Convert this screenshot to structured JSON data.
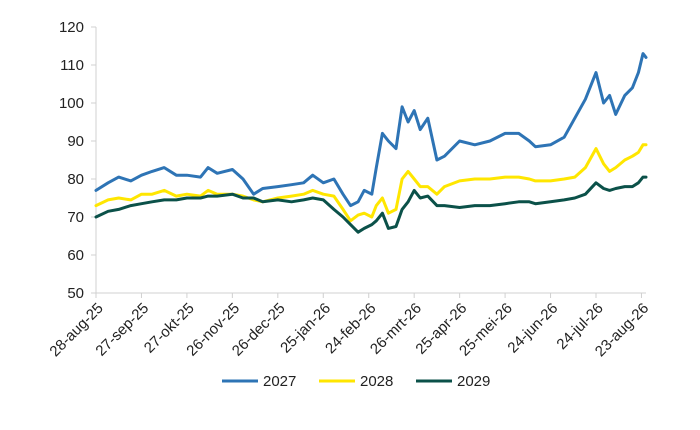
{
  "chart_data": {
    "type": "line",
    "title": "",
    "xlabel": "",
    "ylabel": "",
    "ylim": [
      50,
      120
    ],
    "yticks": [
      50,
      60,
      70,
      80,
      90,
      100,
      110,
      120
    ],
    "xlim": [
      "2025-08-28",
      "2026-08-26"
    ],
    "xtick_labels": [
      {
        "label": "28-aug-25",
        "date": "2025-08-28"
      },
      {
        "label": "27-sep-25",
        "date": "2025-09-27"
      },
      {
        "label": "27-okt-25",
        "date": "2025-10-27"
      },
      {
        "label": "26-nov-25",
        "date": "2025-11-26"
      },
      {
        "label": "26-dec-25",
        "date": "2025-12-26"
      },
      {
        "label": "25-jan-26",
        "date": "2026-01-25"
      },
      {
        "label": "24-feb-26",
        "date": "2026-02-24"
      },
      {
        "label": "26-mrt-26",
        "date": "2026-03-26"
      },
      {
        "label": "25-apr-26",
        "date": "2026-04-25"
      },
      {
        "label": "25-mei-26",
        "date": "2026-05-25"
      },
      {
        "label": "24-jun-26",
        "date": "2026-06-24"
      },
      {
        "label": "24-jul-26",
        "date": "2026-07-24"
      },
      {
        "label": "23-aug-26",
        "date": "2026-08-23"
      }
    ],
    "grid": false,
    "legend_position": "bottom",
    "series": [
      {
        "name": "2027",
        "color": "#2e74b5",
        "points": [
          [
            "2025-08-28",
            77
          ],
          [
            "2025-09-05",
            79
          ],
          [
            "2025-09-12",
            80.5
          ],
          [
            "2025-09-20",
            79.5
          ],
          [
            "2025-09-27",
            81
          ],
          [
            "2025-10-04",
            82
          ],
          [
            "2025-10-12",
            83
          ],
          [
            "2025-10-20",
            81
          ],
          [
            "2025-10-27",
            81
          ],
          [
            "2025-11-05",
            80.5
          ],
          [
            "2025-11-10",
            83
          ],
          [
            "2025-11-16",
            81.5
          ],
          [
            "2025-11-26",
            82.5
          ],
          [
            "2025-12-03",
            80
          ],
          [
            "2025-12-10",
            76
          ],
          [
            "2025-12-16",
            77.5
          ],
          [
            "2025-12-26",
            78
          ],
          [
            "2026-01-04",
            78.5
          ],
          [
            "2026-01-12",
            79
          ],
          [
            "2026-01-18",
            81
          ],
          [
            "2026-01-25",
            79
          ],
          [
            "2026-02-01",
            80
          ],
          [
            "2026-02-07",
            76
          ],
          [
            "2026-02-12",
            73
          ],
          [
            "2026-02-17",
            74
          ],
          [
            "2026-02-21",
            77
          ],
          [
            "2026-02-26",
            76
          ],
          [
            "2026-03-01",
            83
          ],
          [
            "2026-03-05",
            92
          ],
          [
            "2026-03-09",
            90
          ],
          [
            "2026-03-14",
            88
          ],
          [
            "2026-03-18",
            99
          ],
          [
            "2026-03-22",
            95
          ],
          [
            "2026-03-26",
            98
          ],
          [
            "2026-03-30",
            93
          ],
          [
            "2026-04-04",
            96
          ],
          [
            "2026-04-10",
            85
          ],
          [
            "2026-04-15",
            86
          ],
          [
            "2026-04-25",
            90
          ],
          [
            "2026-05-05",
            89
          ],
          [
            "2026-05-15",
            90
          ],
          [
            "2026-05-25",
            92
          ],
          [
            "2026-06-03",
            92
          ],
          [
            "2026-06-10",
            90
          ],
          [
            "2026-06-14",
            88.5
          ],
          [
            "2026-06-24",
            89
          ],
          [
            "2026-07-03",
            91
          ],
          [
            "2026-07-10",
            96
          ],
          [
            "2026-07-17",
            101
          ],
          [
            "2026-07-24",
            108
          ],
          [
            "2026-07-29",
            100
          ],
          [
            "2026-08-02",
            102
          ],
          [
            "2026-08-06",
            97
          ],
          [
            "2026-08-12",
            102
          ],
          [
            "2026-08-17",
            104
          ],
          [
            "2026-08-21",
            108
          ],
          [
            "2026-08-24",
            113
          ],
          [
            "2026-08-26",
            112
          ]
        ]
      },
      {
        "name": "2028",
        "color": "#ffe600",
        "points": [
          [
            "2025-08-28",
            73
          ],
          [
            "2025-09-05",
            74.5
          ],
          [
            "2025-09-12",
            75
          ],
          [
            "2025-09-20",
            74.5
          ],
          [
            "2025-09-27",
            76
          ],
          [
            "2025-10-04",
            76
          ],
          [
            "2025-10-12",
            77
          ],
          [
            "2025-10-20",
            75.5
          ],
          [
            "2025-10-27",
            76
          ],
          [
            "2025-11-05",
            75.5
          ],
          [
            "2025-11-10",
            77
          ],
          [
            "2025-11-16",
            76
          ],
          [
            "2025-11-26",
            76
          ],
          [
            "2025-12-03",
            75.5
          ],
          [
            "2025-12-10",
            74.5
          ],
          [
            "2025-12-16",
            74
          ],
          [
            "2025-12-26",
            75
          ],
          [
            "2026-01-04",
            75.5
          ],
          [
            "2026-01-12",
            76
          ],
          [
            "2026-01-18",
            77
          ],
          [
            "2026-01-25",
            76
          ],
          [
            "2026-02-01",
            75.5
          ],
          [
            "2026-02-07",
            72
          ],
          [
            "2026-02-12",
            69
          ],
          [
            "2026-02-17",
            70.5
          ],
          [
            "2026-02-21",
            71
          ],
          [
            "2026-02-26",
            70
          ],
          [
            "2026-03-01",
            73
          ],
          [
            "2026-03-05",
            75
          ],
          [
            "2026-03-09",
            71
          ],
          [
            "2026-03-14",
            72
          ],
          [
            "2026-03-18",
            80
          ],
          [
            "2026-03-22",
            82
          ],
          [
            "2026-03-26",
            80
          ],
          [
            "2026-03-30",
            78
          ],
          [
            "2026-04-04",
            78
          ],
          [
            "2026-04-10",
            76
          ],
          [
            "2026-04-15",
            78
          ],
          [
            "2026-04-25",
            79.5
          ],
          [
            "2026-05-05",
            80
          ],
          [
            "2026-05-15",
            80
          ],
          [
            "2026-05-25",
            80.5
          ],
          [
            "2026-06-03",
            80.5
          ],
          [
            "2026-06-10",
            80
          ],
          [
            "2026-06-14",
            79.5
          ],
          [
            "2026-06-24",
            79.5
          ],
          [
            "2026-07-03",
            80
          ],
          [
            "2026-07-10",
            80.5
          ],
          [
            "2026-07-17",
            83
          ],
          [
            "2026-07-24",
            88
          ],
          [
            "2026-07-29",
            84
          ],
          [
            "2026-08-02",
            82
          ],
          [
            "2026-08-06",
            83
          ],
          [
            "2026-08-12",
            85
          ],
          [
            "2026-08-17",
            86
          ],
          [
            "2026-08-21",
            87
          ],
          [
            "2026-08-24",
            89
          ],
          [
            "2026-08-26",
            89
          ]
        ]
      },
      {
        "name": "2029",
        "color": "#0b5149",
        "points": [
          [
            "2025-08-28",
            70
          ],
          [
            "2025-09-05",
            71.5
          ],
          [
            "2025-09-12",
            72
          ],
          [
            "2025-09-20",
            73
          ],
          [
            "2025-09-27",
            73.5
          ],
          [
            "2025-10-04",
            74
          ],
          [
            "2025-10-12",
            74.5
          ],
          [
            "2025-10-20",
            74.5
          ],
          [
            "2025-10-27",
            75
          ],
          [
            "2025-11-05",
            75
          ],
          [
            "2025-11-10",
            75.5
          ],
          [
            "2025-11-16",
            75.5
          ],
          [
            "2025-11-26",
            76
          ],
          [
            "2025-12-03",
            75
          ],
          [
            "2025-12-10",
            75
          ],
          [
            "2025-12-16",
            74
          ],
          [
            "2025-12-26",
            74.5
          ],
          [
            "2026-01-04",
            74
          ],
          [
            "2026-01-12",
            74.5
          ],
          [
            "2026-01-18",
            75
          ],
          [
            "2026-01-25",
            74.5
          ],
          [
            "2026-02-01",
            72
          ],
          [
            "2026-02-07",
            70
          ],
          [
            "2026-02-12",
            68
          ],
          [
            "2026-02-17",
            66
          ],
          [
            "2026-02-21",
            67
          ],
          [
            "2026-02-26",
            68
          ],
          [
            "2026-03-01",
            69
          ],
          [
            "2026-03-05",
            71
          ],
          [
            "2026-03-09",
            67
          ],
          [
            "2026-03-14",
            67.5
          ],
          [
            "2026-03-18",
            72
          ],
          [
            "2026-03-22",
            74
          ],
          [
            "2026-03-26",
            77
          ],
          [
            "2026-03-30",
            75
          ],
          [
            "2026-04-04",
            75.5
          ],
          [
            "2026-04-10",
            73
          ],
          [
            "2026-04-15",
            73
          ],
          [
            "2026-04-25",
            72.5
          ],
          [
            "2026-05-05",
            73
          ],
          [
            "2026-05-15",
            73
          ],
          [
            "2026-05-25",
            73.5
          ],
          [
            "2026-06-03",
            74
          ],
          [
            "2026-06-10",
            74
          ],
          [
            "2026-06-14",
            73.5
          ],
          [
            "2026-06-24",
            74
          ],
          [
            "2026-07-03",
            74.5
          ],
          [
            "2026-07-10",
            75
          ],
          [
            "2026-07-17",
            76
          ],
          [
            "2026-07-24",
            79
          ],
          [
            "2026-07-29",
            77.5
          ],
          [
            "2026-08-02",
            77
          ],
          [
            "2026-08-06",
            77.5
          ],
          [
            "2026-08-12",
            78
          ],
          [
            "2026-08-17",
            78
          ],
          [
            "2026-08-21",
            79
          ],
          [
            "2026-08-24",
            80.5
          ],
          [
            "2026-08-26",
            80.5
          ]
        ]
      }
    ]
  }
}
